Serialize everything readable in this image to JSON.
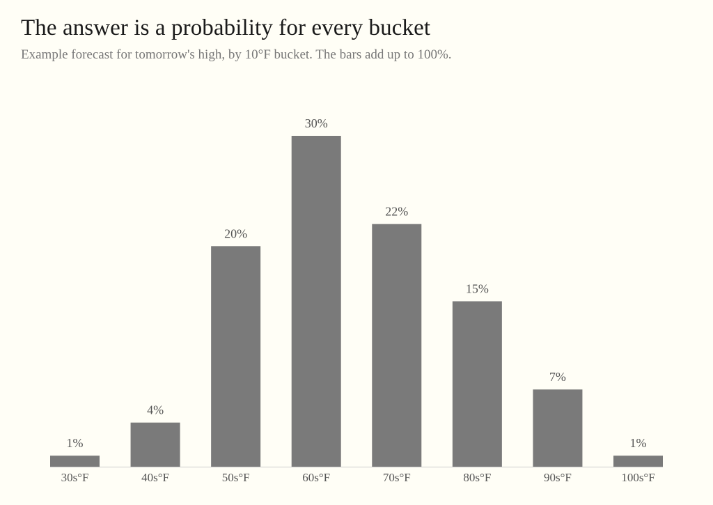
{
  "header": {
    "title": "The answer is a probability for every bucket",
    "subtitle": "Example forecast for tomorrow's high, by 10°F bucket. The bars add up to 100%."
  },
  "colors": {
    "background": "#fffef6",
    "bar": "#7a7a7a",
    "baseline": "#cccccc",
    "text": "#555555"
  },
  "chart_data": {
    "type": "bar",
    "title": "The answer is a probability for every bucket",
    "subtitle": "Example forecast for tomorrow's high, by 10°F bucket. The bars add up to 100%.",
    "xlabel": "",
    "ylabel": "",
    "categories": [
      "30s°F",
      "40s°F",
      "50s°F",
      "60s°F",
      "70s°F",
      "80s°F",
      "90s°F",
      "100s°F"
    ],
    "values": [
      1,
      4,
      20,
      30,
      22,
      15,
      7,
      1
    ],
    "data_labels": [
      "1%",
      "4%",
      "20%",
      "30%",
      "22%",
      "15%",
      "7%",
      "1%"
    ],
    "ylim": [
      0,
      30
    ],
    "grid": false,
    "legend": "none"
  }
}
